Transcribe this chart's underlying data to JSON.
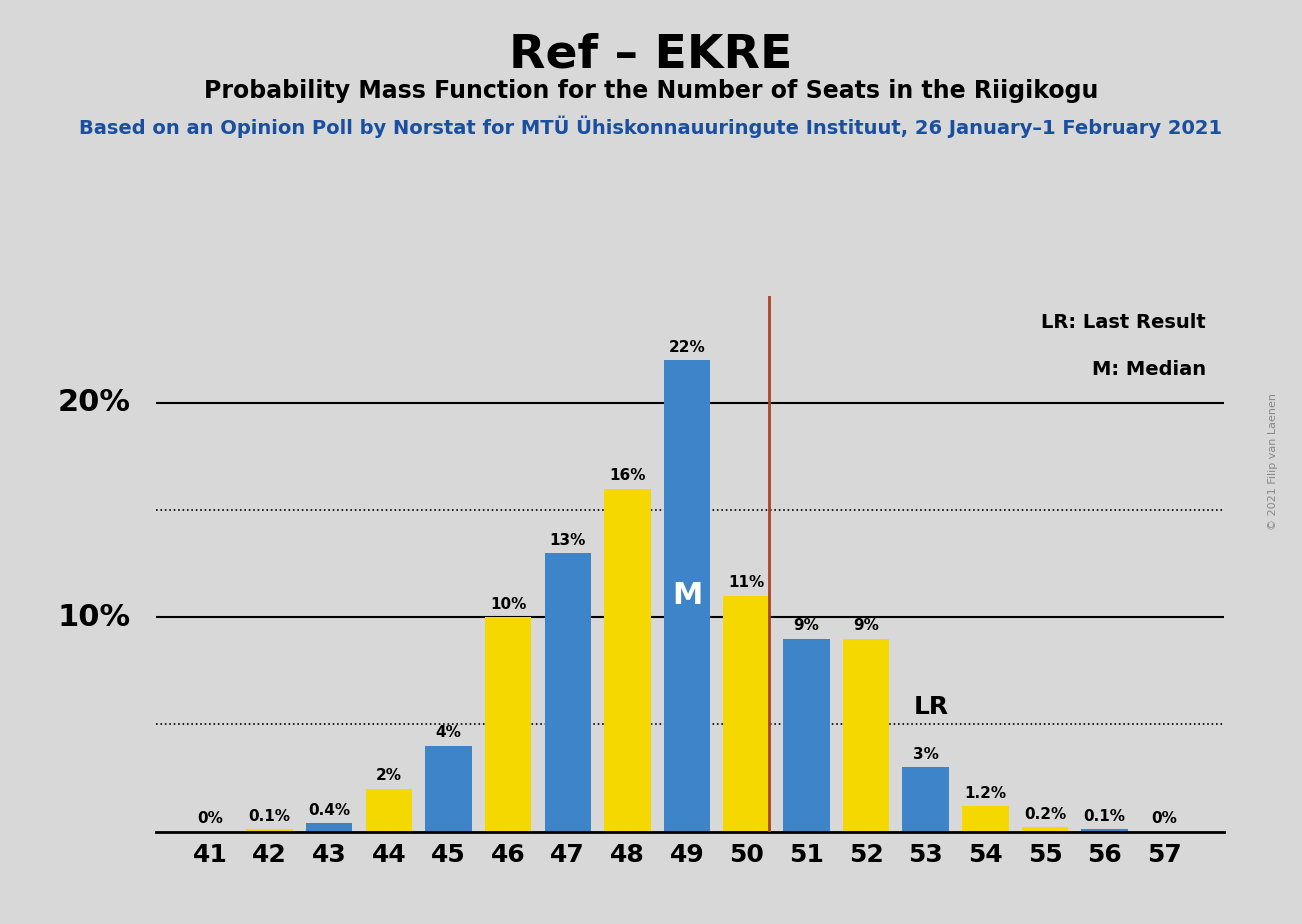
{
  "title": "Ref – EKRE",
  "subtitle": "Probability Mass Function for the Number of Seats in the Riigikogu",
  "source_line": "Based on an Opinion Poll by Norstat for MTÜ Ühiskonnauuringute Instituut, 26 January–1 February 2021",
  "seats": [
    41,
    42,
    43,
    44,
    45,
    46,
    47,
    48,
    49,
    50,
    51,
    52,
    53,
    54,
    55,
    56,
    57
  ],
  "values": [
    0.0,
    0.1,
    0.4,
    2.0,
    4.0,
    10.0,
    13.0,
    16.0,
    22.0,
    11.0,
    9.0,
    9.0,
    3.0,
    1.2,
    0.2,
    0.1,
    0.0
  ],
  "colors": [
    "#f5d800",
    "#f5d800",
    "#3d85c8",
    "#f5d800",
    "#3d85c8",
    "#f5d800",
    "#3d85c8",
    "#f5d800",
    "#3d85c8",
    "#f5d800",
    "#3d85c8",
    "#f5d800",
    "#3d85c8",
    "#f5d800",
    "#f5d800",
    "#3d85c8",
    "#f5d800"
  ],
  "labels": [
    "0%",
    "0.1%",
    "0.4%",
    "2%",
    "4%",
    "10%",
    "13%",
    "16%",
    "22%",
    "11%",
    "9%",
    "9%",
    "3%",
    "1.2%",
    "0.2%",
    "0.1%",
    "0%"
  ],
  "median_seat": 49,
  "lr_seat": 50,
  "lr_label": "LR",
  "lr_legend": "LR: Last Result",
  "m_legend": "M: Median",
  "ylim": [
    0,
    25
  ],
  "background_color": "#d8d8d8",
  "edge_color": "#111111",
  "bar_color_blue": "#3d85c8",
  "bar_color_yellow": "#f5d800",
  "lr_line_color": "#aa4422",
  "title_fontsize": 34,
  "subtitle_fontsize": 17,
  "source_fontsize": 14,
  "watermark": "© 2021 Filip van Laenen"
}
